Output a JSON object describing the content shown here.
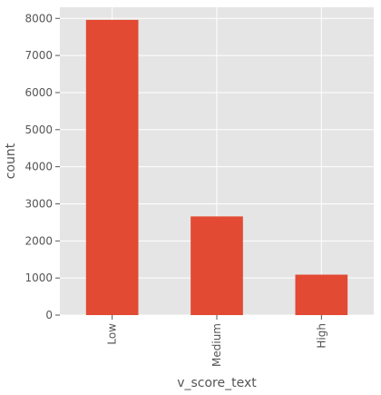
{
  "chart_data": {
    "type": "bar",
    "categories": [
      "Low",
      "Medium",
      "High"
    ],
    "values": [
      7960,
      2660,
      1090
    ],
    "xlabel": "v_score_text",
    "ylabel": "count",
    "ylim": [
      0,
      8300
    ],
    "yticks": [
      0,
      1000,
      2000,
      3000,
      4000,
      5000,
      6000,
      7000,
      8000
    ],
    "grid": true,
    "colors": {
      "bar": "#E24A33",
      "plot_background": "#E5E5E5",
      "grid": "#FFFFFF",
      "text": "#555555"
    }
  }
}
